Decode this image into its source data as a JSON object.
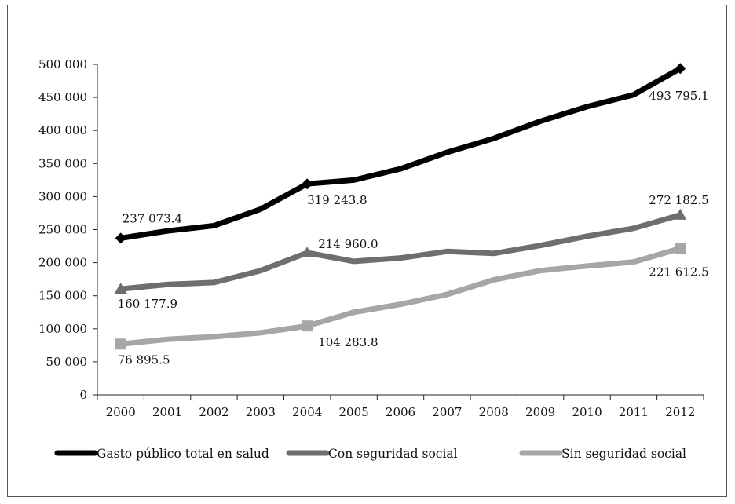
{
  "chart_data": {
    "type": "line",
    "title": "",
    "xlabel": "",
    "ylabel": "",
    "x": [
      "2000",
      "2001",
      "2002",
      "2003",
      "2004",
      "2005",
      "2006",
      "2007",
      "2008",
      "2009",
      "2010",
      "2011",
      "2012"
    ],
    "ylim": [
      0,
      500000
    ],
    "yticks": [
      0,
      50000,
      100000,
      150000,
      200000,
      250000,
      300000,
      350000,
      400000,
      450000,
      500000
    ],
    "ytick_labels": [
      "0",
      "50 000",
      "100 000",
      "150 000",
      "200 000",
      "250 000",
      "300 000",
      "350 000",
      "400 000",
      "450 000",
      "500 000"
    ],
    "grid": false,
    "legend_position": "bottom",
    "series": [
      {
        "name": "Gasto público total en salud",
        "color": "#000000",
        "marker": "diamond",
        "values": [
          237073.4,
          248000,
          256000,
          281000,
          319243.8,
          325000,
          342000,
          367000,
          388000,
          414000,
          436000,
          454000,
          493795.1
        ]
      },
      {
        "name": "Con seguridad social",
        "color": "#6e6e6e",
        "marker": "triangle",
        "values": [
          160177.9,
          167000,
          170000,
          188000,
          214960.0,
          202000,
          207000,
          217000,
          214000,
          226000,
          240000,
          252000,
          272182.5
        ]
      },
      {
        "name": "Sin seguridad social",
        "color": "#a6a6a6",
        "marker": "square",
        "values": [
          76895.5,
          84000,
          88000,
          94000,
          104283.8,
          125000,
          137000,
          152000,
          174000,
          188000,
          195000,
          201000,
          221612.5
        ]
      }
    ],
    "annotations": [
      {
        "series": 0,
        "index": 0,
        "text": "237 073.4"
      },
      {
        "series": 0,
        "index": 4,
        "text": "319 243.8"
      },
      {
        "series": 0,
        "index": 12,
        "text": "493 795.1"
      },
      {
        "series": 1,
        "index": 0,
        "text": "160 177.9"
      },
      {
        "series": 1,
        "index": 4,
        "text": "214 960.0"
      },
      {
        "series": 1,
        "index": 12,
        "text": "272 182.5"
      },
      {
        "series": 2,
        "index": 0,
        "text": "76 895.5"
      },
      {
        "series": 2,
        "index": 4,
        "text": "104 283.8"
      },
      {
        "series": 2,
        "index": 12,
        "text": "221 612.5"
      }
    ]
  }
}
